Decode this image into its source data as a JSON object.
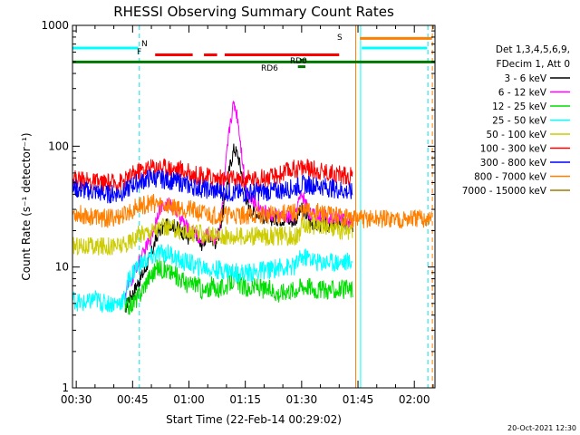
{
  "chart_data": {
    "type": "line",
    "title": "RHESSI Observing Summary Count Rates",
    "xlabel": "Start Time (22-Feb-14 00:29:02)",
    "ylabel": "Count Rate (s⁻¹ detector⁻¹)",
    "y_scale": "log",
    "ylim": [
      1,
      1000
    ],
    "xlim_minutes": [
      29.0,
      125.5
    ],
    "x_ticks": [
      {
        "label": "00:30",
        "t": 30
      },
      {
        "label": "00:45",
        "t": 45
      },
      {
        "label": "01:00",
        "t": 60
      },
      {
        "label": "01:15",
        "t": 75
      },
      {
        "label": "01:30",
        "t": 90
      },
      {
        "label": "01:45",
        "t": 105
      },
      {
        "label": "02:00",
        "t": 120
      }
    ],
    "y_ticks": [
      {
        "label": "1",
        "v": 1
      },
      {
        "label": "10",
        "v": 10
      },
      {
        "label": "100",
        "v": 100
      },
      {
        "label": "1000",
        "v": 1000
      }
    ],
    "legend_header": [
      "Det 1,3,4,5,6,9,",
      "FDecim 1, Att 0"
    ],
    "legend_position": "right",
    "series": [
      {
        "name": "3 - 6 keV",
        "color": "#000000",
        "x": [
          43,
          44,
          45,
          46,
          48,
          50,
          52,
          55,
          58,
          60,
          62,
          63,
          65,
          67,
          68,
          69,
          70,
          71,
          72,
          73,
          74,
          75,
          76,
          78,
          80,
          82,
          85,
          88,
          89,
          90,
          91,
          92,
          94,
          96,
          98,
          100,
          102,
          103.6
        ],
        "values": [
          4.5,
          5.5,
          6,
          7,
          9,
          13,
          20,
          23,
          20,
          17,
          19,
          15,
          18,
          16,
          19,
          28,
          45,
          70,
          96,
          85,
          60,
          40,
          30,
          28,
          26,
          25,
          25,
          24,
          27,
          30,
          28,
          24,
          22,
          23,
          21,
          24,
          22,
          22
        ]
      },
      {
        "name": "6 - 12 keV",
        "color": "#ff00ff",
        "x": [
          43,
          44,
          45,
          46,
          48,
          50,
          52,
          55,
          58,
          60,
          62,
          63,
          65,
          67,
          68,
          69,
          70,
          71,
          72,
          73,
          74,
          75,
          76,
          78,
          80,
          82,
          85,
          88,
          89,
          90,
          91,
          92,
          94,
          96,
          98,
          100,
          102,
          103.6
        ],
        "values": [
          6,
          7,
          8,
          10,
          13,
          18,
          30,
          34,
          25,
          20,
          19,
          16,
          19,
          17,
          20,
          35,
          80,
          160,
          230,
          170,
          90,
          50,
          38,
          33,
          29,
          27,
          26,
          26,
          33,
          40,
          35,
          28,
          26,
          27,
          25,
          27,
          24,
          24
        ]
      },
      {
        "name": "12 - 25 keV",
        "color": "#00dd00",
        "x": [
          43,
          45,
          47,
          49,
          52,
          55,
          58,
          60,
          62,
          64,
          66,
          68,
          70,
          72,
          74,
          76,
          78,
          80,
          82,
          84,
          86,
          88,
          90,
          92,
          94,
          96,
          98,
          100,
          102,
          103.6
        ],
        "values": [
          4.5,
          5,
          6,
          8,
          10,
          9,
          8,
          7,
          7.5,
          6,
          7,
          6.5,
          7,
          8,
          7,
          6.5,
          7,
          6.5,
          6.5,
          6,
          6.5,
          6.5,
          7,
          7,
          6.5,
          6.5,
          6.5,
          6.5,
          6.5,
          6.5
        ]
      },
      {
        "name": "25 - 50 keV",
        "color": "#00ffff",
        "x": [
          29,
          31,
          33,
          35,
          37,
          39,
          41,
          43,
          44,
          46,
          48,
          50,
          52,
          55,
          58,
          60,
          62,
          64,
          66,
          68,
          70,
          72,
          74,
          76,
          78,
          80,
          82,
          84,
          86,
          88,
          90,
          92,
          94,
          96,
          98,
          100,
          102,
          103.6
        ],
        "values": [
          5.5,
          5,
          5,
          5.5,
          5,
          5,
          5,
          5.5,
          8,
          10,
          11,
          12,
          13,
          13,
          11,
          11,
          10,
          10,
          9.5,
          9.5,
          9.5,
          9,
          9,
          9,
          9,
          9.5,
          9.5,
          10,
          10,
          10,
          12,
          12,
          11,
          11,
          11,
          11,
          11,
          11
        ]
      },
      {
        "name": "50 - 100 keV",
        "color": "#cccc00",
        "x": [
          29,
          32,
          35,
          38,
          41,
          43,
          45,
          47,
          50,
          52,
          55,
          58,
          60,
          63,
          66,
          69,
          72,
          75,
          78,
          80,
          82,
          84,
          86,
          88,
          89,
          90,
          92,
          95,
          98,
          101,
          103.6
        ],
        "values": [
          15,
          15,
          14.5,
          15,
          15,
          15,
          17,
          19,
          20,
          21,
          21,
          20,
          19,
          19,
          18,
          18,
          18,
          18,
          18,
          18,
          18,
          18,
          18,
          18,
          18,
          22,
          22,
          22,
          21,
          20,
          20
        ]
      },
      {
        "name": "100 - 300 keV",
        "color": "#ff0000",
        "x": [
          29,
          32,
          35,
          38,
          41,
          43,
          45,
          47,
          50,
          52,
          55,
          58,
          60,
          63,
          66,
          69,
          72,
          75,
          78,
          80,
          82,
          84,
          86,
          88,
          90,
          92,
          95,
          98,
          101,
          103.6
        ],
        "values": [
          55,
          52,
          50,
          49,
          50,
          52,
          58,
          63,
          67,
          68,
          66,
          64,
          60,
          57,
          55,
          54,
          53,
          53,
          54,
          55,
          55,
          58,
          62,
          65,
          67,
          65,
          63,
          60,
          58,
          56
        ]
      },
      {
        "name": "300 - 800 keV",
        "color": "#0000ff",
        "x": [
          29,
          32,
          35,
          38,
          41,
          43,
          45,
          47,
          50,
          52,
          55,
          58,
          60,
          63,
          66,
          69,
          72,
          75,
          78,
          80,
          82,
          84,
          86,
          88,
          90,
          92,
          95,
          98,
          101,
          103.6
        ],
        "values": [
          45,
          43,
          42,
          40,
          41,
          42,
          48,
          51,
          55,
          54,
          52,
          50,
          47,
          45,
          43,
          42,
          41,
          41,
          42,
          42,
          42,
          43,
          44,
          45,
          48,
          48,
          47,
          45,
          43,
          41
        ]
      },
      {
        "name": "800 - 7000 keV",
        "color": "#ff8000",
        "x": [
          29,
          32,
          35,
          38,
          41,
          43,
          45,
          47,
          50,
          52,
          55,
          58,
          60,
          63,
          66,
          69,
          72,
          75,
          78,
          80,
          82,
          84,
          86,
          88,
          90,
          92,
          95,
          98,
          101,
          104,
          107,
          110,
          113,
          116,
          119,
          122,
          124.7
        ],
        "values": [
          28,
          27,
          26,
          25,
          26,
          27,
          30,
          32,
          34,
          33,
          32,
          31,
          30,
          28,
          27,
          27,
          27,
          27,
          27,
          27,
          27,
          27,
          28,
          28,
          29,
          29,
          28,
          27,
          26,
          25,
          25,
          25,
          25,
          25,
          25,
          25,
          25
        ]
      },
      {
        "name": "7000 - 15000 keV",
        "color": "#a07800",
        "x": [],
        "values": []
      }
    ]
  },
  "labels": {
    "marker_n": "N",
    "marker_f": "F",
    "marker_s": "S",
    "marker_rd0": "RD0",
    "marker_rd6": "RD6",
    "timestamp": "20-Oct-2021 12:30"
  }
}
